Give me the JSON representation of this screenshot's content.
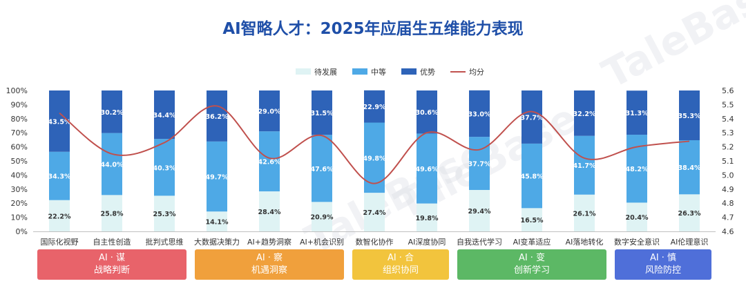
{
  "title": "AI智略人才：2025年应届生五维能力表现",
  "watermark": "TaleBase",
  "chart_data": {
    "type": "bar",
    "stacked": true,
    "categories": [
      "国际化视野",
      "自主性创造",
      "批判式思维",
      "大数据决策力",
      "AI+趋势洞察",
      "AI+机会识别",
      "数智化协作",
      "AI深度协同",
      "自我迭代学习",
      "AI变革适应",
      "AI落地转化",
      "数字安全意识",
      "AI伦理意识"
    ],
    "series": [
      {
        "name": "待发展",
        "type": "bar",
        "color": "#dff3f4",
        "values": [
          22.2,
          25.8,
          25.3,
          14.1,
          28.4,
          20.9,
          27.4,
          19.8,
          29.4,
          16.5,
          26.1,
          20.4,
          26.3
        ]
      },
      {
        "name": "中等",
        "type": "bar",
        "color": "#4ea9e6",
        "values": [
          34.3,
          44.0,
          40.3,
          49.7,
          42.6,
          47.6,
          49.8,
          49.6,
          37.7,
          45.8,
          41.7,
          48.2,
          38.4
        ]
      },
      {
        "name": "优势",
        "type": "bar",
        "color": "#2e63b8",
        "values": [
          43.5,
          30.2,
          34.4,
          36.2,
          29.0,
          31.5,
          22.9,
          30.6,
          33.0,
          37.7,
          32.2,
          31.3,
          35.3
        ]
      },
      {
        "name": "均分",
        "type": "line",
        "color": "#c0504d",
        "axis": "right",
        "values": [
          5.44,
          5.15,
          5.23,
          5.49,
          5.12,
          5.28,
          4.94,
          5.3,
          5.18,
          5.45,
          5.12,
          5.2,
          5.24
        ]
      }
    ],
    "value_labels": [
      [
        "22.2%",
        "25.8%",
        "25.3%",
        "14.1%",
        "28.4%",
        "20.9%",
        "27.4%",
        "19.8%",
        "29.4%",
        "16.5%",
        "26.1%",
        "20.4%",
        "26.3%"
      ],
      [
        "34.3%",
        "44.0%",
        "40.3%",
        "49.7%",
        "42.6%",
        "47.6%",
        "49.8%",
        "49.6%",
        "37.7%",
        "45.8%",
        "41.7%",
        "48.2%",
        "38.4%"
      ],
      [
        "43.5%",
        "30.2%",
        "34.4%",
        "36.2%",
        "29.0%",
        "31.5%",
        "22.9%",
        "30.6%",
        "33.0%",
        "37.7%",
        "32.2%",
        "31.3%",
        "35.3%"
      ]
    ],
    "ylim_left": [
      0,
      100
    ],
    "yticks_left": [
      "0%",
      "10%",
      "20%",
      "30%",
      "40%",
      "50%",
      "60%",
      "70%",
      "80%",
      "90%",
      "100%"
    ],
    "ylim_right": [
      4.6,
      5.6
    ],
    "yticks_right": [
      "4.6",
      "4.7",
      "4.8",
      "4.9",
      "5.0",
      "5.1",
      "5.2",
      "5.3",
      "5.4",
      "5.5",
      "5.6"
    ],
    "legend_position": "top-center",
    "grid": false
  },
  "groups": [
    {
      "line1": "AI · 谋",
      "line2": "战略判断",
      "color": "#e8636a",
      "span": [
        0,
        2
      ]
    },
    {
      "line1": "AI · 察",
      "line2": "机遇洞察",
      "color": "#f0a03c",
      "span": [
        3,
        5
      ]
    },
    {
      "line1": "AI · 合",
      "line2": "组织协同",
      "color": "#f2c43d",
      "span": [
        6,
        7
      ]
    },
    {
      "line1": "AI · 变",
      "line2": "创新学习",
      "color": "#5cb865",
      "span": [
        8,
        10
      ]
    },
    {
      "line1": "AI · 慎",
      "line2": "风险防控",
      "color": "#4f6fd9",
      "span": [
        11,
        12
      ]
    }
  ]
}
